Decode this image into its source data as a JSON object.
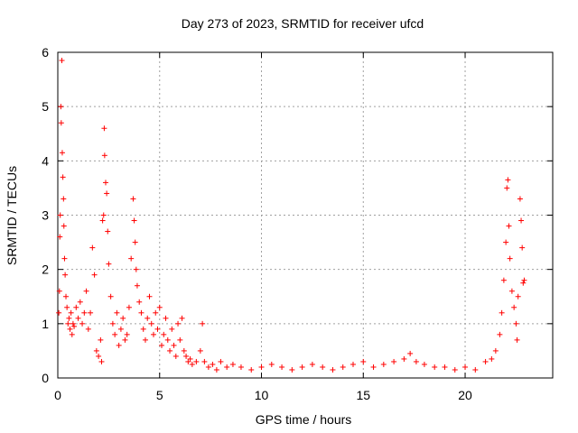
{
  "chart_data": {
    "type": "scatter",
    "title": "Day 273 of 2023, SRMTID for receiver ufcd",
    "xlabel": "GPS time / hours",
    "ylabel": "SRMTID / TECUs",
    "xlim": [
      0,
      24.3
    ],
    "ylim": [
      0,
      6
    ],
    "xticks": [
      0,
      5,
      10,
      15,
      20
    ],
    "yticks": [
      0,
      1,
      2,
      3,
      4,
      5,
      6
    ],
    "grid": true,
    "marker": "+",
    "color": "#ff0000",
    "series": [
      {
        "name": "SRMTID",
        "points": [
          [
            0.05,
            1.2
          ],
          [
            0.08,
            1.6
          ],
          [
            0.1,
            2.6
          ],
          [
            0.12,
            3.0
          ],
          [
            0.15,
            5.0
          ],
          [
            0.17,
            4.7
          ],
          [
            0.2,
            5.85
          ],
          [
            0.22,
            4.15
          ],
          [
            0.25,
            3.7
          ],
          [
            0.28,
            3.3
          ],
          [
            0.3,
            2.8
          ],
          [
            0.33,
            2.2
          ],
          [
            0.36,
            1.9
          ],
          [
            0.4,
            1.5
          ],
          [
            0.45,
            1.3
          ],
          [
            0.5,
            1.0
          ],
          [
            0.55,
            1.1
          ],
          [
            0.6,
            0.9
          ],
          [
            0.65,
            1.2
          ],
          [
            0.7,
            0.8
          ],
          [
            0.75,
            1.0
          ],
          [
            0.8,
            0.95
          ],
          [
            0.9,
            1.3
          ],
          [
            1.0,
            1.1
          ],
          [
            1.1,
            1.4
          ],
          [
            1.2,
            1.0
          ],
          [
            1.3,
            1.2
          ],
          [
            1.4,
            1.6
          ],
          [
            1.5,
            0.9
          ],
          [
            1.6,
            1.2
          ],
          [
            1.7,
            2.4
          ],
          [
            1.8,
            1.9
          ],
          [
            1.9,
            0.5
          ],
          [
            2.0,
            0.4
          ],
          [
            2.1,
            0.7
          ],
          [
            2.15,
            0.3
          ],
          [
            2.2,
            2.9
          ],
          [
            2.25,
            3.0
          ],
          [
            2.28,
            4.6
          ],
          [
            2.3,
            4.1
          ],
          [
            2.35,
            3.6
          ],
          [
            2.4,
            3.4
          ],
          [
            2.45,
            2.7
          ],
          [
            2.5,
            2.1
          ],
          [
            2.6,
            1.5
          ],
          [
            2.7,
            1.0
          ],
          [
            2.8,
            0.8
          ],
          [
            2.9,
            1.2
          ],
          [
            3.0,
            0.6
          ],
          [
            3.1,
            0.9
          ],
          [
            3.2,
            1.1
          ],
          [
            3.3,
            0.7
          ],
          [
            3.4,
            0.8
          ],
          [
            3.5,
            1.3
          ],
          [
            3.6,
            2.2
          ],
          [
            3.7,
            3.3
          ],
          [
            3.75,
            2.9
          ],
          [
            3.8,
            2.5
          ],
          [
            3.85,
            2.0
          ],
          [
            3.9,
            1.7
          ],
          [
            4.0,
            1.4
          ],
          [
            4.1,
            1.2
          ],
          [
            4.2,
            0.9
          ],
          [
            4.3,
            0.7
          ],
          [
            4.4,
            1.1
          ],
          [
            4.5,
            1.5
          ],
          [
            4.6,
            1.0
          ],
          [
            4.7,
            0.8
          ],
          [
            4.8,
            1.2
          ],
          [
            4.9,
            0.9
          ],
          [
            5.0,
            1.3
          ],
          [
            5.1,
            0.6
          ],
          [
            5.2,
            0.8
          ],
          [
            5.3,
            1.1
          ],
          [
            5.4,
            0.7
          ],
          [
            5.5,
            0.5
          ],
          [
            5.6,
            0.9
          ],
          [
            5.7,
            0.6
          ],
          [
            5.8,
            0.4
          ],
          [
            5.9,
            1.0
          ],
          [
            6.0,
            0.7
          ],
          [
            6.1,
            1.1
          ],
          [
            6.2,
            0.5
          ],
          [
            6.3,
            0.4
          ],
          [
            6.4,
            0.3
          ],
          [
            6.5,
            0.35
          ],
          [
            6.6,
            0.25
          ],
          [
            6.8,
            0.3
          ],
          [
            7.0,
            0.5
          ],
          [
            7.1,
            1.0
          ],
          [
            7.2,
            0.3
          ],
          [
            7.4,
            0.2
          ],
          [
            7.6,
            0.25
          ],
          [
            7.8,
            0.15
          ],
          [
            8.0,
            0.3
          ],
          [
            8.3,
            0.2
          ],
          [
            8.6,
            0.25
          ],
          [
            9.0,
            0.2
          ],
          [
            9.5,
            0.15
          ],
          [
            10.0,
            0.2
          ],
          [
            10.5,
            0.25
          ],
          [
            11.0,
            0.2
          ],
          [
            11.5,
            0.15
          ],
          [
            12.0,
            0.2
          ],
          [
            12.5,
            0.25
          ],
          [
            13.0,
            0.2
          ],
          [
            13.5,
            0.15
          ],
          [
            14.0,
            0.2
          ],
          [
            14.5,
            0.25
          ],
          [
            15.0,
            0.3
          ],
          [
            15.5,
            0.2
          ],
          [
            16.0,
            0.25
          ],
          [
            16.5,
            0.3
          ],
          [
            17.0,
            0.35
          ],
          [
            17.3,
            0.45
          ],
          [
            17.6,
            0.3
          ],
          [
            18.0,
            0.25
          ],
          [
            18.5,
            0.2
          ],
          [
            19.0,
            0.2
          ],
          [
            19.5,
            0.15
          ],
          [
            20.0,
            0.2
          ],
          [
            20.5,
            0.15
          ],
          [
            21.0,
            0.3
          ],
          [
            21.3,
            0.35
          ],
          [
            21.5,
            0.5
          ],
          [
            21.7,
            0.8
          ],
          [
            21.8,
            1.2
          ],
          [
            21.9,
            1.8
          ],
          [
            22.0,
            2.5
          ],
          [
            22.05,
            3.5
          ],
          [
            22.1,
            3.65
          ],
          [
            22.15,
            2.8
          ],
          [
            22.2,
            2.2
          ],
          [
            22.3,
            1.6
          ],
          [
            22.4,
            1.3
          ],
          [
            22.5,
            1.0
          ],
          [
            22.55,
            0.7
          ],
          [
            22.6,
            1.5
          ],
          [
            22.7,
            3.3
          ],
          [
            22.75,
            2.9
          ],
          [
            22.8,
            2.4
          ],
          [
            22.85,
            1.75
          ],
          [
            22.9,
            1.8
          ]
        ]
      }
    ]
  }
}
